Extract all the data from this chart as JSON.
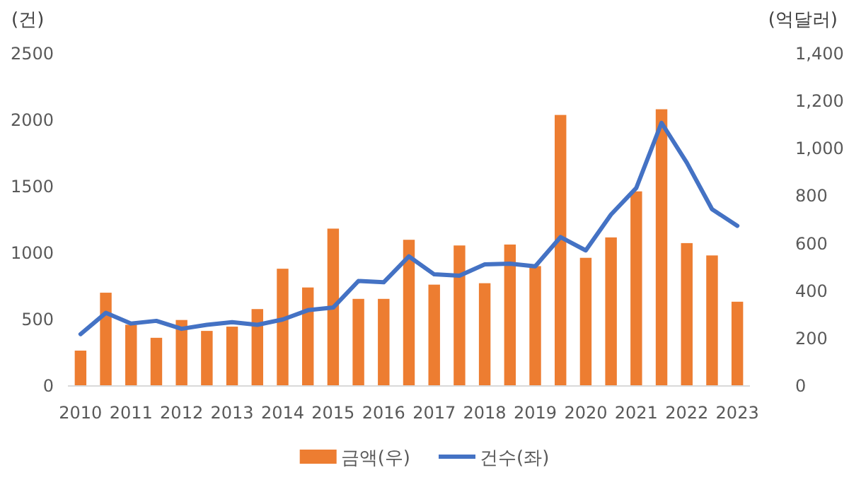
{
  "chart_data": {
    "type": "bar",
    "categories": [
      "2010",
      null,
      "2011",
      null,
      "2012",
      null,
      "2013",
      null,
      "2014",
      null,
      "2015",
      null,
      "2016",
      null,
      "2017",
      null,
      "2018",
      null,
      "2019",
      null,
      "2020",
      null,
      "2021",
      null,
      "2022",
      null,
      "2023"
    ],
    "series": [
      {
        "name": "금액(우)",
        "axis": "y2",
        "color": "#ed7d31",
        "values": [
          149,
          393,
          258,
          203,
          278,
          232,
          250,
          324,
          494,
          415,
          663,
          367,
          367,
          616,
          427,
          592,
          433,
          596,
          505,
          1142,
          540,
          626,
          820,
          1166,
          602,
          550,
          355
        ]
      },
      {
        "name": "건수(좌)",
        "type": "line",
        "color": "#4472c4",
        "values": [
          390,
          550,
          470,
          490,
          430,
          460,
          480,
          460,
          500,
          570,
          590,
          790,
          780,
          975,
          840,
          830,
          915,
          920,
          900,
          1120,
          1020,
          1290,
          1490,
          1980,
          1680,
          1330,
          1205
        ]
      }
    ],
    "ylabel": "(건)",
    "y2label": "(억달러)",
    "ylim": [
      0,
      2500
    ],
    "yticks": [
      0,
      500,
      1000,
      1500,
      2000,
      2500
    ],
    "y2lim": [
      0,
      1400
    ],
    "y2ticks": [
      0,
      {
        "value": 200,
        "label": "200"
      },
      {
        "value": 400,
        "label": "400"
      },
      {
        "value": 600,
        "label": "600"
      },
      {
        "value": 800,
        "label": "800"
      },
      {
        "value": 1000,
        "label": "1,000"
      },
      {
        "value": 1200,
        "label": "1,200"
      },
      {
        "value": 1400,
        "label": "1,400"
      }
    ],
    "legend": "bottom",
    "marker": "none",
    "line_style": "solid"
  }
}
